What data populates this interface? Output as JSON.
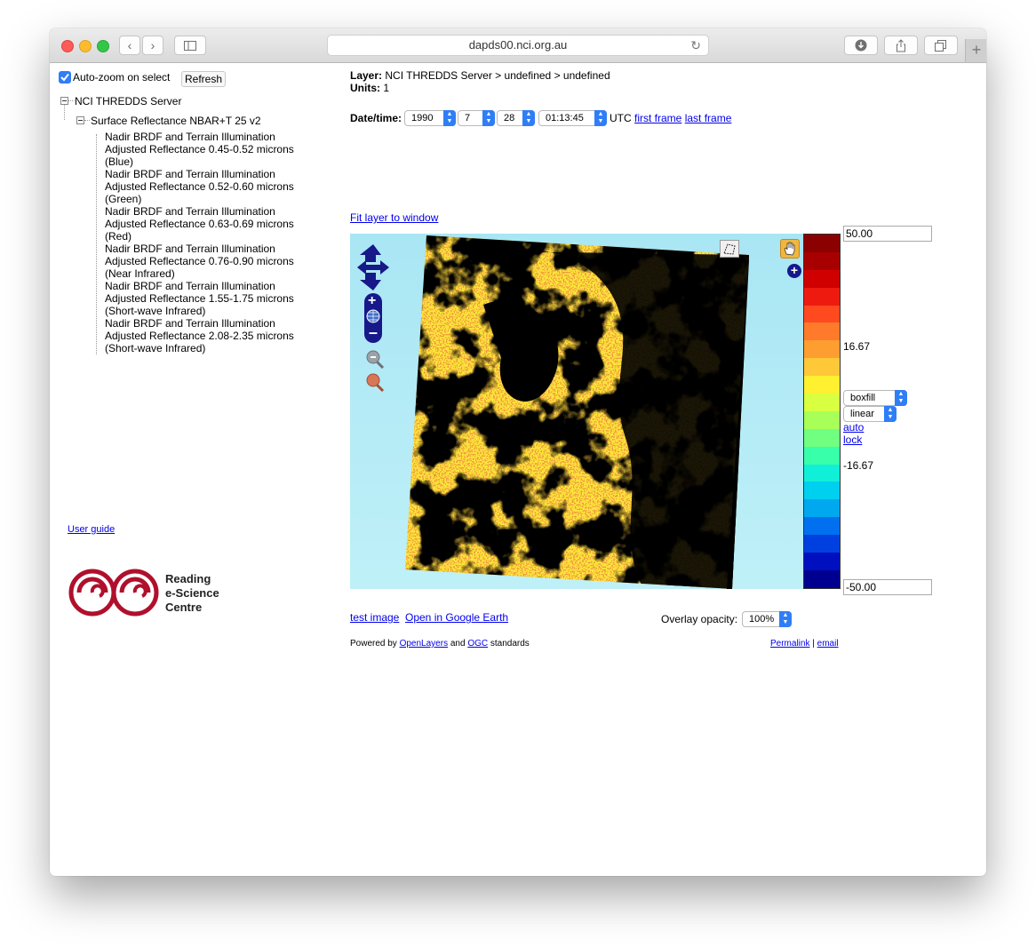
{
  "browser": {
    "url": "dapds00.nci.org.au",
    "tab_plus": "+"
  },
  "sidebar": {
    "autozoom_label": "Auto-zoom on select",
    "autozoom_checked": true,
    "refresh_label": "Refresh",
    "tree_root": "NCI THREDDS Server",
    "tree_dataset": "Surface Reflectance NBAR+T 25 v2",
    "tree_leaves": [
      {
        "line1": "Nadir BRDF and Terrain Illumination",
        "line2": "Adjusted Reflectance 0.45-0.52 microns",
        "line3": "(Blue)"
      },
      {
        "line1": "Nadir BRDF and Terrain Illumination",
        "line2": "Adjusted Reflectance 0.52-0.60 microns",
        "line3": "(Green)"
      },
      {
        "line1": "Nadir BRDF and Terrain Illumination",
        "line2": "Adjusted Reflectance 0.63-0.69 microns",
        "line3": "(Red)"
      },
      {
        "line1": "Nadir BRDF and Terrain Illumination",
        "line2": "Adjusted Reflectance 0.76-0.90 microns",
        "line3": "(Near Infrared)"
      },
      {
        "line1": "Nadir BRDF and Terrain Illumination",
        "line2": "Adjusted Reflectance 1.55-1.75 microns",
        "line3": "(Short-wave Infrared)"
      },
      {
        "line1": "Nadir BRDF and Terrain Illumination",
        "line2": "Adjusted Reflectance 2.08-2.35 microns",
        "line3": "(Short-wave Infrared)"
      }
    ],
    "user_guide": "User guide",
    "logo_line1": "Reading",
    "logo_line2": "e-Science",
    "logo_line3": "Centre"
  },
  "main": {
    "layer_label": "Layer:",
    "layer_value": "NCI THREDDS Server > undefined > undefined",
    "units_label": "Units:",
    "units_value": "1",
    "datetime_label": "Date/time:",
    "year": "1990",
    "month": "7",
    "day": "28",
    "time": "01:13:45",
    "utc": "UTC",
    "first_frame": "first frame",
    "last_frame": "last frame",
    "fit_layer": "Fit layer to window",
    "scale_max": "50.00",
    "scale_mid_high": "16.67",
    "scale_mid_low": "-16.67",
    "scale_min": "-50.00",
    "style_select": "boxfill",
    "scale_type": "linear",
    "auto": "auto",
    "lock": "lock",
    "test_image": "test image",
    "google_earth": "Open in Google Earth",
    "opacity_label": "Overlay opacity:",
    "opacity_value": "100%",
    "powered_by": "Powered by",
    "openlayers": "OpenLayers",
    "and": "and",
    "ogc": "OGC",
    "standards": "standards",
    "permalink": "Permalink",
    "separator": "|",
    "email": "email"
  },
  "colors": {
    "palette": [
      "#8b0000",
      "#a80000",
      "#d00000",
      "#ee1a10",
      "#ff4a20",
      "#ff7a2a",
      "#ff9e30",
      "#ffc838",
      "#fff030",
      "#d8ff40",
      "#a8ff58",
      "#70ff80",
      "#38ffaa",
      "#10f0d8",
      "#00d0f0",
      "#00a8f0",
      "#0070f0",
      "#0040e0",
      "#0010c0",
      "#000090"
    ],
    "accent": "#2f7ef6",
    "map_nav": "#17188a"
  }
}
